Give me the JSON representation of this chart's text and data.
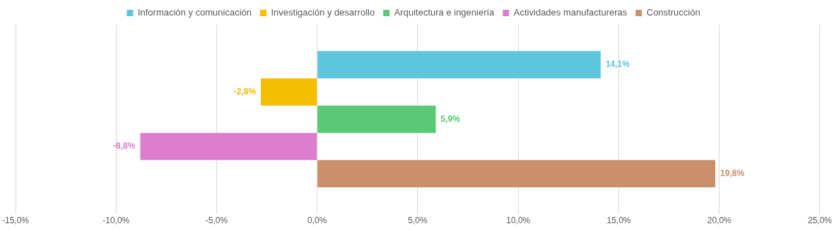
{
  "chart_data": {
    "type": "bar",
    "orientation": "horizontal",
    "categories": [
      null
    ],
    "series": [
      {
        "name": "Información y comunicación",
        "color": "#5fc5dd",
        "values": [
          14.1
        ],
        "value_labels": [
          "14,1%"
        ]
      },
      {
        "name": "Investigación y desarrollo",
        "color": "#f5be00",
        "values": [
          -2.8
        ],
        "value_labels": [
          "-2,8%"
        ]
      },
      {
        "name": "Arquitectura e ingeniería",
        "color": "#59c975",
        "values": [
          5.9
        ],
        "value_labels": [
          "5,9%"
        ]
      },
      {
        "name": "Actividades manufactureras",
        "color": "#dc7ecd",
        "values": [
          -8.8
        ],
        "value_labels": [
          "-8,8%"
        ]
      },
      {
        "name": "Construcción",
        "color": "#c9906b",
        "values": [
          19.8
        ],
        "value_labels": [
          "19,8%"
        ]
      }
    ],
    "xlim": [
      -15,
      25
    ],
    "xticks": [
      {
        "value": -15,
        "label": "-15,0%"
      },
      {
        "value": -10,
        "label": "-10,0%"
      },
      {
        "value": -5,
        "label": "-5,0%"
      },
      {
        "value": 0,
        "label": "0,0%"
      },
      {
        "value": 5,
        "label": "5,0%"
      },
      {
        "value": 10,
        "label": "10,0%"
      },
      {
        "value": 15,
        "label": "15,0%"
      },
      {
        "value": 20,
        "label": "20,0%"
      },
      {
        "value": 25,
        "label": "25,0%"
      }
    ],
    "grid": "x",
    "legend": "top"
  }
}
